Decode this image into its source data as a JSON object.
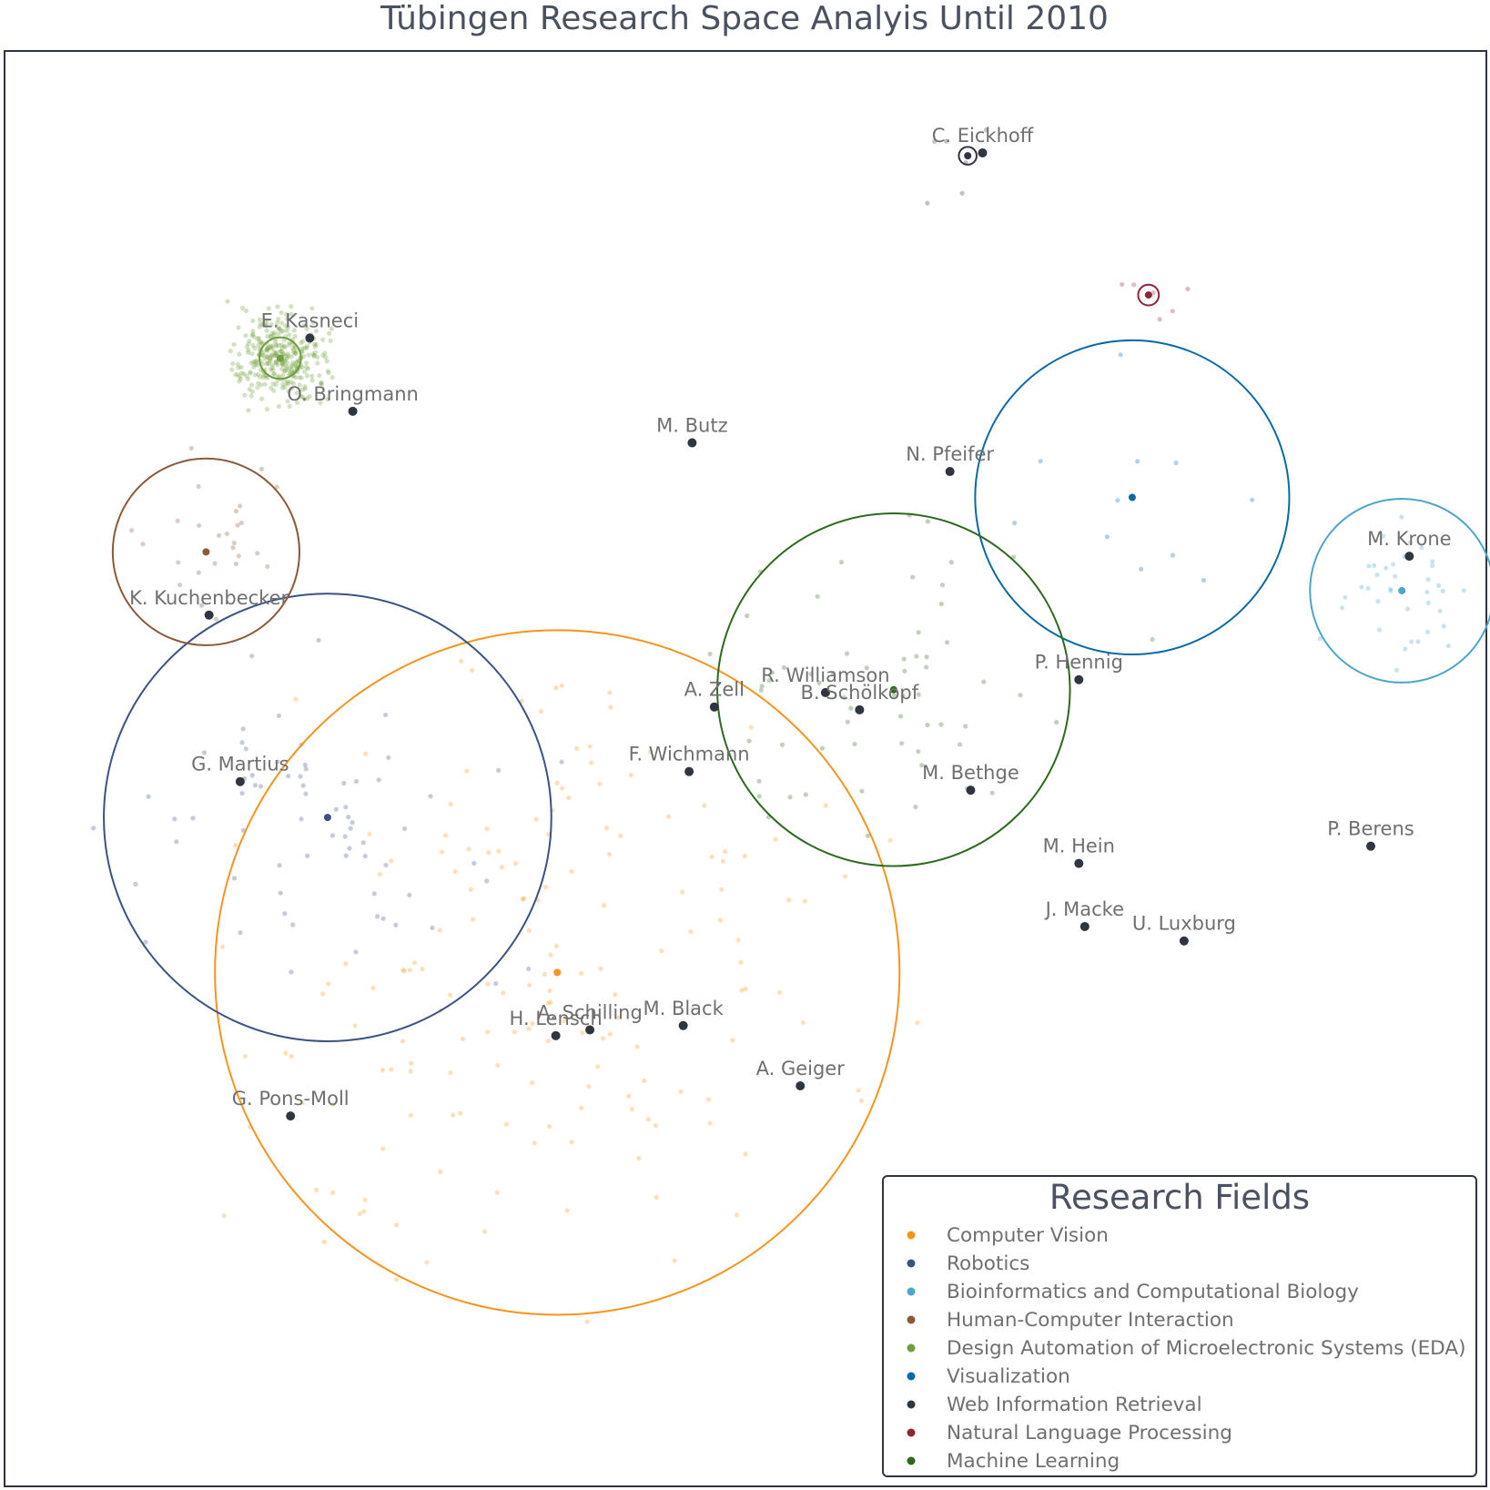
{
  "chart_data": {
    "type": "scatter",
    "title": "Tübingen Research Space Analyis Until 2010",
    "xlim": [
      0,
      100
    ],
    "ylim": [
      0,
      100
    ],
    "grid": false,
    "legend": {
      "title": "Research Fields",
      "placement": "bottom-right"
    },
    "fields": [
      {
        "name": "Computer Vision",
        "color": "#f7941e",
        "centroid": [
          37.3,
          35.8
        ],
        "radius": 23.1
      },
      {
        "name": "Robotics",
        "color": "#3b5284",
        "centroid": [
          21.8,
          46.6
        ],
        "radius": 15.1
      },
      {
        "name": "Bioinformatics and Computational Biology",
        "color": "#4ba6c8",
        "centroid": [
          94.3,
          62.4
        ],
        "radius": 6.2
      },
      {
        "name": "Human-Computer Interaction",
        "color": "#8a5a3a",
        "centroid": [
          13.6,
          65.1
        ],
        "radius": 6.3
      },
      {
        "name": "Design Automation of Microelectronic Systems (EDA)",
        "color": "#6f9e3d",
        "centroid": [
          18.6,
          78.6
        ],
        "radius": 1.4
      },
      {
        "name": "Visualization",
        "color": "#0a6aa6",
        "centroid": [
          76.1,
          68.9
        ],
        "radius": 10.6
      },
      {
        "name": "Web Information Retrieval",
        "color": "#2f3640",
        "centroid": [
          65.0,
          92.7
        ],
        "radius": 0.6
      },
      {
        "name": "Natural Language Processing",
        "color": "#8e2636",
        "centroid": [
          77.2,
          83.0
        ],
        "radius": 0.7
      },
      {
        "name": "Machine Learning",
        "color": "#2d6a1e",
        "centroid": [
          60.0,
          55.5
        ],
        "radius": 11.9
      }
    ],
    "authors": [
      {
        "label": "C. Eickhoff",
        "x": 66.0,
        "y": 92.9
      },
      {
        "label": "E. Kasneci",
        "x": 20.6,
        "y": 80.0
      },
      {
        "label": "O. Bringmann",
        "x": 23.5,
        "y": 74.9
      },
      {
        "label": "M. Butz",
        "x": 46.4,
        "y": 72.7
      },
      {
        "label": "N. Pfeifer",
        "x": 63.8,
        "y": 70.7
      },
      {
        "label": "M. Krone",
        "x": 94.8,
        "y": 64.8
      },
      {
        "label": "K. Kuchenbecker",
        "x": 13.8,
        "y": 60.7
      },
      {
        "label": "P. Hennig",
        "x": 72.5,
        "y": 56.2
      },
      {
        "label": "A. Zell",
        "x": 47.9,
        "y": 54.3
      },
      {
        "label": "R. Williamson",
        "x": 55.4,
        "y": 55.3
      },
      {
        "label": "B. Schölkopf",
        "x": 57.7,
        "y": 54.1
      },
      {
        "label": "F. Wichmann",
        "x": 46.2,
        "y": 49.8
      },
      {
        "label": "G. Martius",
        "x": 15.9,
        "y": 49.1
      },
      {
        "label": "M. Bethge",
        "x": 65.2,
        "y": 48.5
      },
      {
        "label": "M. Hein",
        "x": 72.5,
        "y": 43.4
      },
      {
        "label": "P. Berens",
        "x": 92.2,
        "y": 44.6
      },
      {
        "label": "J. Macke",
        "x": 72.9,
        "y": 39.0
      },
      {
        "label": "U. Luxburg",
        "x": 79.6,
        "y": 38.0
      },
      {
        "label": "A. Schilling",
        "x": 39.5,
        "y": 31.8
      },
      {
        "label": "H. Lensch",
        "x": 37.2,
        "y": 31.4
      },
      {
        "label": "M. Black",
        "x": 45.8,
        "y": 32.1
      },
      {
        "label": "A. Geiger",
        "x": 53.7,
        "y": 27.9
      },
      {
        "label": "G. Pons-Moll",
        "x": 19.3,
        "y": 25.8
      }
    ]
  }
}
